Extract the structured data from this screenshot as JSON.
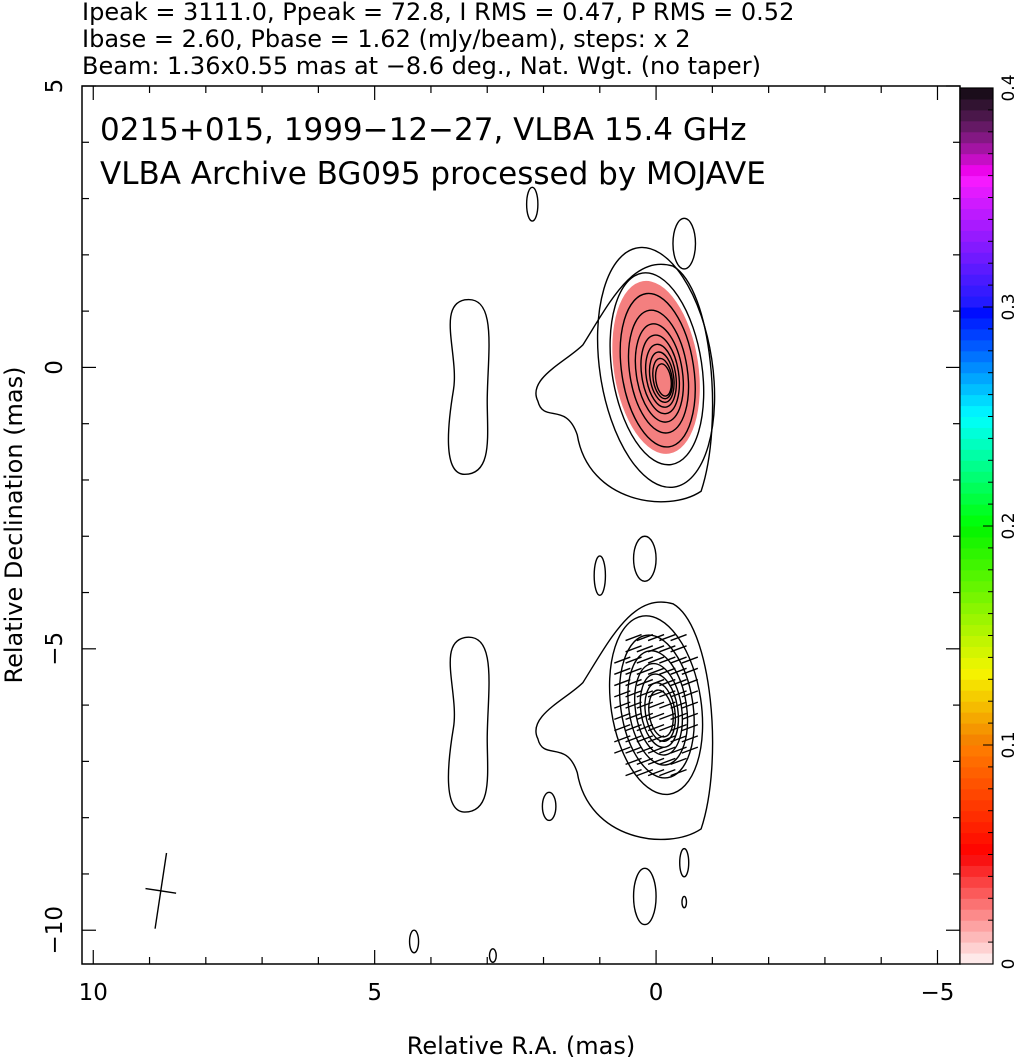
{
  "chart_data": {
    "type": "contour",
    "header": [
      "Ipeak = 3111.0, Ppeak = 72.8, I RMS = 0.47, P RMS = 0.52",
      "Ibase = 2.60, Pbase = 1.62 (mJy/beam), steps: x 2",
      "Beam: 1.36x0.55 mas at −8.6 deg., Nat. Wgt. (no taper)"
    ],
    "title": [
      "0215+015, 1999−12−27, VLBA 15.4 GHz",
      "VLBA Archive BG095 processed by MOJAVE"
    ],
    "xlabel": "Relative R.A. (mas)",
    "ylabel": "Relative Declination (mas)",
    "xlim": [
      10.2,
      -5.4
    ],
    "ylim": [
      -10.6,
      5
    ],
    "x_ticks": [
      10,
      5,
      0,
      -5
    ],
    "x_tick_labels": [
      "10",
      "5",
      "0",
      "−5"
    ],
    "y_ticks": [
      5,
      0,
      -5,
      -10
    ],
    "y_tick_labels": [
      "5",
      "0",
      "−5",
      "−10"
    ],
    "colorbar": {
      "range": [
        0,
        0.4
      ],
      "ticks": [
        0,
        0.1,
        0.2,
        0.3,
        0.4
      ],
      "tick_labels": [
        "0",
        "0.1",
        "0.2",
        "0.3",
        "0.4"
      ]
    },
    "panels": [
      {
        "name": "stokes-i-with-fractional-polarization",
        "center": [
          0,
          0
        ],
        "core_contours": {
          "count": 10,
          "a_outer": 1.0,
          "b_outer": 2.15,
          "tilt_deg": -8.6
        },
        "fractional_pol_region": {
          "a": 0.75,
          "b": 1.55,
          "value_approx": 0.03,
          "color": "#f47f7f"
        }
      },
      {
        "name": "polarized-intensity-with-evpa",
        "center": [
          0,
          -6
        ],
        "core_contours": {
          "count": 7,
          "a_outer": 0.8,
          "b_outer": 1.6,
          "tilt_deg": -8.6
        },
        "evpa_ticks": true
      }
    ],
    "beam": {
      "major": 1.36,
      "minor": 0.55,
      "pa_deg": -8.6,
      "position": [
        8.8,
        -9.3
      ]
    }
  }
}
